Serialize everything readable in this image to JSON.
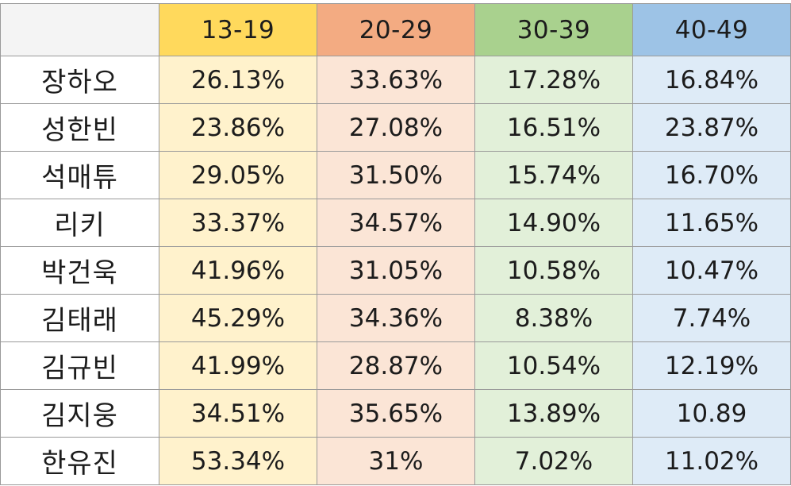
{
  "colors": {
    "header_bg": [
      "#ffd95c",
      "#f3ab82",
      "#a9d18e",
      "#9dc3e6"
    ],
    "cell_bg": [
      "#fff2cc",
      "#fbe5d6",
      "#e2f0d9",
      "#deebf7"
    ]
  },
  "chart_data": {
    "type": "table",
    "columns": [
      "13-19",
      "20-29",
      "30-39",
      "40-49"
    ],
    "rows": [
      {
        "name": "장하오",
        "values": [
          "26.13%",
          "33.63%",
          "17.28%",
          "16.84%"
        ]
      },
      {
        "name": "성한빈",
        "values": [
          "23.86%",
          "27.08%",
          "16.51%",
          "23.87%"
        ]
      },
      {
        "name": "석매튜",
        "values": [
          "29.05%",
          "31.50%",
          "15.74%",
          "16.70%"
        ]
      },
      {
        "name": "리키",
        "values": [
          "33.37%",
          "34.57%",
          "14.90%",
          "11.65%"
        ]
      },
      {
        "name": "박건욱",
        "values": [
          "41.96%",
          "31.05%",
          "10.58%",
          "10.47%"
        ]
      },
      {
        "name": "김태래",
        "values": [
          "45.29%",
          "34.36%",
          "8.38%",
          "7.74%"
        ]
      },
      {
        "name": "김규빈",
        "values": [
          "41.99%",
          "28.87%",
          "10.54%",
          "12.19%"
        ]
      },
      {
        "name": "김지웅",
        "values": [
          "34.51%",
          "35.65%",
          "13.89%",
          "10.89"
        ]
      },
      {
        "name": "한유진",
        "values": [
          "53.34%",
          "31%",
          "7.02%",
          "11.02%"
        ]
      }
    ]
  }
}
